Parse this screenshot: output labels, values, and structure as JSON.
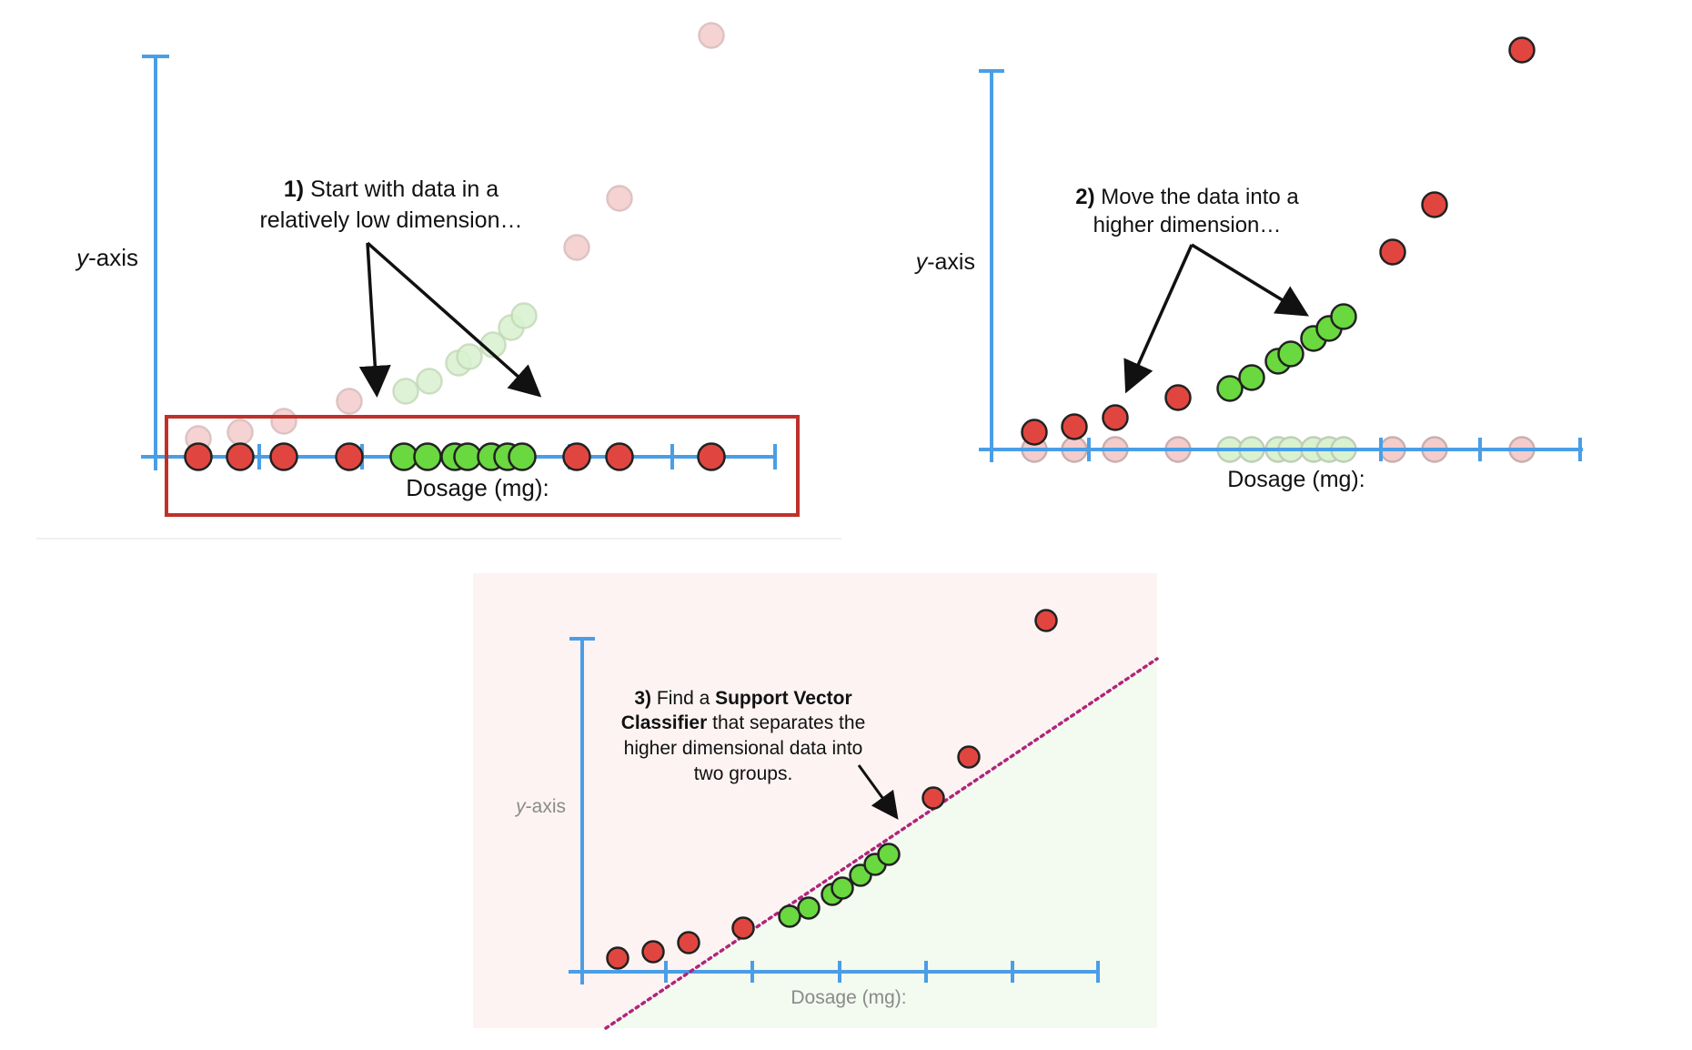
{
  "panels": [
    {
      "id": "panel-1",
      "step_number": "1)",
      "caption_line1": "Start with data in a",
      "caption_line2": "relatively low dimension…",
      "y_axis_label_italic": "y",
      "y_axis_label_rest": "-axis",
      "x_axis_label": "Dosage (mg):"
    },
    {
      "id": "panel-2",
      "step_number": "2)",
      "caption_line1": "Move the data into a",
      "caption_line2": "higher dimension…",
      "y_axis_label_italic": "y",
      "y_axis_label_rest": "-axis",
      "x_axis_label": "Dosage (mg):"
    },
    {
      "id": "panel-3",
      "step_number": "3)",
      "caption_line1_a": "Find a ",
      "caption_line1_b": "Support Vector",
      "caption_line2_a": "Classifier",
      "caption_line2_b": " that separates the",
      "caption_line3": "higher dimensional data into",
      "caption_line4": "two groups.",
      "y_axis_label_italic": "y",
      "y_axis_label_rest": "-axis",
      "x_axis_label": "Dosage (mg):"
    }
  ],
  "colors": {
    "axis": "#4a9ee6",
    "red_point": "#e0463f",
    "green_point": "#6ad83f",
    "faded_red": "#f4cccc",
    "faded_green": "#d9f2cf",
    "highlight_box": "#c0302a",
    "svc_line": "#b0257a",
    "region_red": "#fdf3f3",
    "region_green": "#f3faf0"
  }
}
